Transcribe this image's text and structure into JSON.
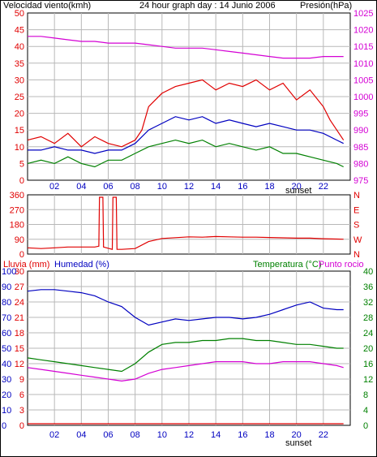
{
  "colors": {
    "red": "#e00000",
    "magenta": "#d400d4",
    "blue": "#0000c0",
    "green": "#008000",
    "grid": "#b8b8b8",
    "frame": "#000000",
    "bg": "#ffffff"
  },
  "chart_data": [
    {
      "type": "line",
      "title": "24 hour graph day : 14 Junio 2006",
      "left_axis_label": "Velocidad viento(kmh)",
      "right_axis_label": "Presión(hPa)",
      "x_ticks": [
        "02",
        "04",
        "06",
        "08",
        "10",
        "12",
        "14",
        "16",
        "18",
        "20",
        "22"
      ],
      "x_marker": "sunset",
      "left_ticks": [
        "0",
        "5",
        "10",
        "15",
        "20",
        "25",
        "30",
        "35",
        "40",
        "45",
        "50"
      ],
      "right_ticks": [
        "975",
        "980",
        "985",
        "990",
        "995",
        "1000",
        "1005",
        "1010",
        "1015",
        "1020",
        "1025"
      ],
      "ylim_left": [
        0,
        50
      ],
      "ylim_right": [
        975,
        1025
      ],
      "series": [
        {
          "color": "red",
          "axis": "left",
          "x": [
            0,
            1,
            2,
            3,
            4,
            5,
            6,
            7,
            7.5,
            8,
            8.5,
            9,
            10,
            11,
            12,
            13,
            14,
            15,
            16,
            17,
            18,
            19,
            20,
            21,
            22,
            22.5,
            23,
            23.5
          ],
          "y": [
            12,
            13,
            11,
            14,
            10,
            13,
            11,
            10,
            11,
            12,
            15,
            22,
            26,
            28,
            29,
            30,
            27,
            29,
            28,
            30,
            27,
            29,
            24,
            27,
            22,
            18,
            15,
            12
          ]
        },
        {
          "color": "blue",
          "axis": "left",
          "x": [
            0,
            1,
            2,
            3,
            4,
            5,
            6,
            7,
            8,
            9,
            10,
            11,
            12,
            13,
            14,
            15,
            16,
            17,
            18,
            19,
            20,
            21,
            22,
            23,
            23.5
          ],
          "y": [
            9,
            9,
            10,
            9,
            9,
            8,
            9,
            9,
            11,
            15,
            17,
            19,
            18,
            19,
            17,
            18,
            17,
            16,
            17,
            16,
            15,
            15,
            14,
            12,
            11
          ]
        },
        {
          "color": "green",
          "axis": "left",
          "x": [
            0,
            1,
            2,
            3,
            4,
            5,
            6,
            7,
            8,
            9,
            10,
            11,
            12,
            13,
            14,
            15,
            16,
            17,
            18,
            19,
            20,
            21,
            22,
            23,
            23.5
          ],
          "y": [
            5,
            6,
            5,
            7,
            5,
            4,
            6,
            6,
            8,
            10,
            11,
            12,
            11,
            12,
            10,
            11,
            10,
            9,
            10,
            8,
            8,
            7,
            6,
            5,
            4
          ]
        },
        {
          "color": "magenta",
          "axis": "right",
          "x": [
            0,
            1,
            2,
            3,
            4,
            5,
            6,
            7,
            8,
            9,
            10,
            11,
            12,
            13,
            14,
            15,
            16,
            17,
            18,
            19,
            20,
            21,
            22,
            23,
            23.5
          ],
          "y": [
            1018,
            1018,
            1017.5,
            1017,
            1016.5,
            1016.5,
            1016,
            1016,
            1016,
            1015.5,
            1015,
            1014.5,
            1014.5,
            1014.5,
            1014,
            1013.5,
            1013,
            1012.5,
            1012,
            1011.5,
            1011.5,
            1011.5,
            1012,
            1012,
            1012
          ]
        }
      ]
    },
    {
      "type": "line",
      "left_ticks": [
        "0",
        "90",
        "180",
        "270",
        "360"
      ],
      "right_ticks": [
        "N",
        "W",
        "S",
        "E",
        "N"
      ],
      "ylim_left": [
        0,
        360
      ],
      "x_ticks": [],
      "series": [
        {
          "color": "red",
          "axis": "left",
          "x": [
            0,
            1,
            2,
            3,
            4,
            5,
            5.3,
            5.35,
            5.6,
            5.65,
            6.3,
            6.35,
            6.6,
            6.65,
            7,
            8,
            9,
            10,
            11,
            12,
            13,
            14,
            15,
            16,
            17,
            18,
            19,
            20,
            21,
            22,
            23,
            23.5
          ],
          "y": [
            30,
            25,
            30,
            35,
            35,
            35,
            40,
            355,
            355,
            35,
            20,
            355,
            355,
            20,
            20,
            25,
            70,
            90,
            95,
            100,
            98,
            102,
            100,
            98,
            98,
            96,
            94,
            92,
            92,
            88,
            86,
            85
          ]
        }
      ]
    },
    {
      "type": "line",
      "left_axis_label": "Lluvia (mm)",
      "left_axis_label_2": "Humedad (%)",
      "right_axis_label": "Temperatura (°C)",
      "right_axis_label_2": "Punto rocio",
      "x_ticks": [
        "02",
        "04",
        "06",
        "08",
        "10",
        "12",
        "14",
        "16",
        "18",
        "20",
        "22"
      ],
      "x_marker": "sunset",
      "left_ticks_rain": [
        "0",
        "3",
        "6",
        "9",
        "12",
        "15",
        "18",
        "21",
        "24",
        "27",
        "30"
      ],
      "left_ticks_hum": [
        "0",
        "10",
        "20",
        "30",
        "40",
        "50",
        "60",
        "70",
        "80",
        "90",
        "100"
      ],
      "right_ticks": [
        "0",
        "4",
        "8",
        "12",
        "16",
        "20",
        "24",
        "28",
        "32",
        "36",
        "40"
      ],
      "ylim_hum": [
        0,
        100
      ],
      "ylim_temp": [
        0,
        40
      ],
      "series": [
        {
          "color": "blue",
          "axis": "humidity",
          "x": [
            0,
            1,
            2,
            3,
            4,
            5,
            6,
            7,
            8,
            9,
            10,
            11,
            12,
            13,
            14,
            15,
            16,
            17,
            18,
            19,
            20,
            21,
            22,
            23,
            23.5
          ],
          "y": [
            87,
            88,
            88,
            87,
            86,
            84,
            80,
            77,
            70,
            65,
            67,
            69,
            68,
            69,
            70,
            70,
            69,
            70,
            72,
            75,
            78,
            80,
            76,
            75,
            75
          ]
        },
        {
          "color": "green",
          "axis": "temperature",
          "x": [
            0,
            1,
            2,
            3,
            4,
            5,
            6,
            7,
            8,
            9,
            10,
            11,
            12,
            13,
            14,
            15,
            16,
            17,
            18,
            19,
            20,
            21,
            22,
            23,
            23.5
          ],
          "y": [
            17.5,
            17,
            16.5,
            16,
            15.5,
            15,
            14.5,
            14,
            16,
            19,
            21,
            21.5,
            21.5,
            22,
            22,
            22.5,
            22.5,
            22,
            22,
            21.5,
            21,
            21,
            20.5,
            20,
            20
          ]
        },
        {
          "color": "magenta",
          "axis": "temperature",
          "x": [
            0,
            1,
            2,
            3,
            4,
            5,
            6,
            7,
            8,
            9,
            10,
            11,
            12,
            13,
            14,
            15,
            16,
            17,
            18,
            19,
            20,
            21,
            22,
            23,
            23.5
          ],
          "y": [
            15,
            14.5,
            14,
            13.5,
            13,
            12.5,
            12,
            11.5,
            12,
            13.5,
            14.5,
            15,
            15.5,
            16,
            16.5,
            16.5,
            16.5,
            16,
            16,
            16.5,
            16.5,
            16.5,
            16,
            15.5,
            15
          ]
        },
        {
          "color": "red",
          "axis": "rain",
          "x": [
            0,
            23.5
          ],
          "y": [
            0,
            0
          ]
        }
      ]
    }
  ]
}
